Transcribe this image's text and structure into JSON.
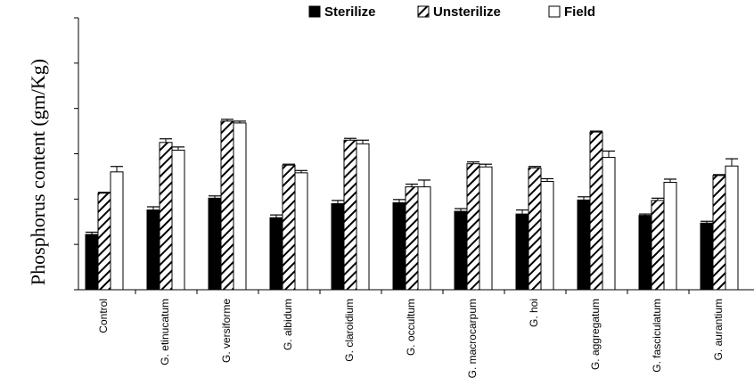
{
  "chart_data": {
    "type": "bar",
    "title": "",
    "xlabel": "",
    "ylabel": "Phosphorus content (gm/Kg)",
    "ylim": [
      0,
      6
    ],
    "y_ticks_labeled": false,
    "grid": false,
    "legend_position": "top",
    "categories": [
      "Control",
      "G. etinucatum",
      "G. versiforme",
      "G. albidum",
      "G. claroidium",
      "G. occultum",
      "G. macrocarpum",
      "G. hoi",
      "G. aggregatum",
      "G. fasciculatum",
      "G. aurantium"
    ],
    "series": [
      {
        "name": "Sterilize",
        "style": "solid-black",
        "values": [
          1.22,
          1.76,
          2.02,
          1.59,
          1.9,
          1.92,
          1.73,
          1.67,
          1.98,
          1.64,
          1.47
        ],
        "errors": [
          0.05,
          0.07,
          0.05,
          0.06,
          0.07,
          0.07,
          0.06,
          0.09,
          0.07,
          0.03,
          0.04
        ]
      },
      {
        "name": "Unsterilize",
        "style": "diagonal-hatch",
        "values": [
          2.13,
          3.25,
          3.72,
          2.75,
          3.3,
          2.27,
          2.78,
          2.69,
          3.48,
          1.97,
          2.52
        ],
        "errors": [
          0.02,
          0.08,
          0.04,
          0.02,
          0.04,
          0.06,
          0.04,
          0.03,
          0.02,
          0.05,
          0.02
        ]
      },
      {
        "name": "Field",
        "style": "white",
        "values": [
          2.6,
          3.08,
          3.68,
          2.58,
          3.22,
          2.27,
          2.71,
          2.39,
          2.92,
          2.37,
          2.73
        ],
        "errors": [
          0.12,
          0.07,
          0.04,
          0.05,
          0.08,
          0.15,
          0.06,
          0.06,
          0.14,
          0.07,
          0.16
        ]
      }
    ],
    "colors": {
      "Sterilize": "#000000",
      "Unsterilize": "#ffffff",
      "Field": "#ffffff",
      "outline": "#000000"
    }
  }
}
